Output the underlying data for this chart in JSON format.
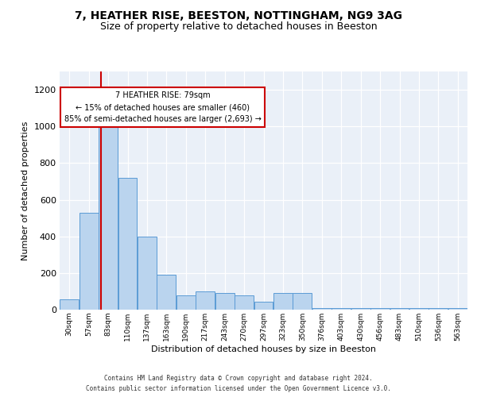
{
  "title1": "7, HEATHER RISE, BEESTON, NOTTINGHAM, NG9 3AG",
  "title2": "Size of property relative to detached houses in Beeston",
  "xlabel": "Distribution of detached houses by size in Beeston",
  "ylabel": "Number of detached properties",
  "footer1": "Contains HM Land Registry data © Crown copyright and database right 2024.",
  "footer2": "Contains public sector information licensed under the Open Government Licence v3.0.",
  "bar_color": "#bad4ee",
  "bar_edge_color": "#5b9bd5",
  "categories": [
    "30sqm",
    "57sqm",
    "83sqm",
    "110sqm",
    "137sqm",
    "163sqm",
    "190sqm",
    "217sqm",
    "243sqm",
    "270sqm",
    "297sqm",
    "323sqm",
    "350sqm",
    "376sqm",
    "403sqm",
    "430sqm",
    "456sqm",
    "483sqm",
    "510sqm",
    "536sqm",
    "563sqm"
  ],
  "values": [
    55,
    530,
    1000,
    720,
    400,
    190,
    80,
    100,
    90,
    80,
    45,
    90,
    90,
    8,
    8,
    8,
    8,
    8,
    8,
    8,
    8
  ],
  "ylim": [
    0,
    1300
  ],
  "yticks": [
    0,
    200,
    400,
    600,
    800,
    1000,
    1200
  ],
  "red_line_x": 1.62,
  "annotation_title": "7 HEATHER RISE: 79sqm",
  "annotation_line1": "← 15% of detached houses are smaller (460)",
  "annotation_line2": "85% of semi-detached houses are larger (2,693) →",
  "background_color": "#eaf0f8",
  "grid_color": "#ffffff",
  "annotation_box_facecolor": "#ffffff",
  "annotation_box_edgecolor": "#cc0000"
}
